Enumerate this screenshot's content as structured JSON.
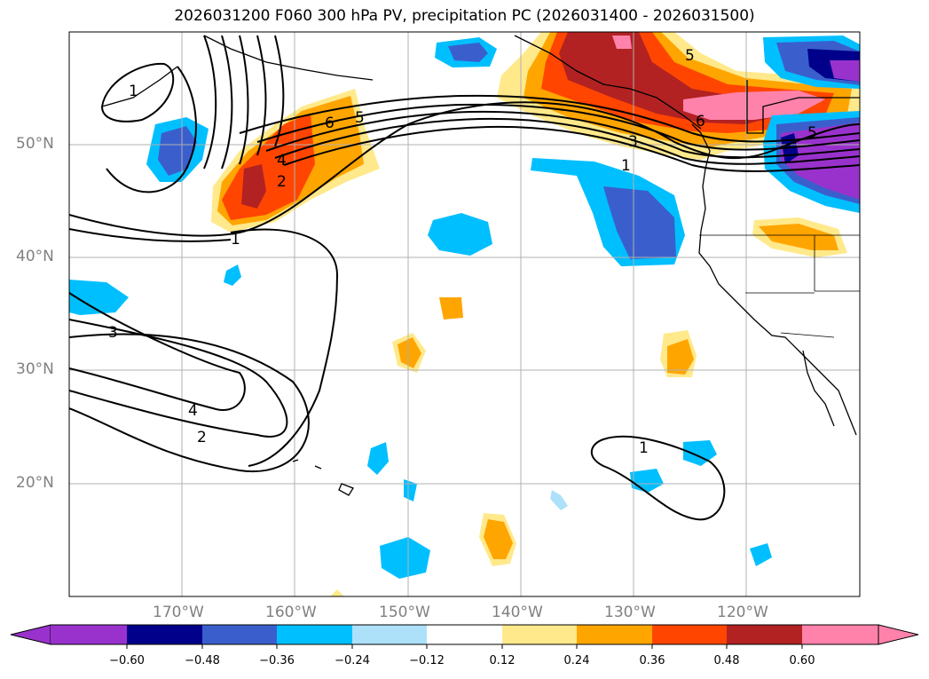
{
  "title": "2026031200 F060 300 hPa PV, precipitation PC (2026031400 - 2026031500)",
  "map": {
    "extent": {
      "lon_min": -180,
      "lon_max": -110,
      "lat_min": 10,
      "lat_max": 60
    },
    "lat_ticks": [
      {
        "value": 20,
        "label": "20°N"
      },
      {
        "value": 30,
        "label": "30°N"
      },
      {
        "value": 40,
        "label": "40°N"
      },
      {
        "value": 50,
        "label": "50°N"
      }
    ],
    "lon_ticks": [
      {
        "value": -170,
        "label": "170°W"
      },
      {
        "value": -160,
        "label": "160°W"
      },
      {
        "value": -150,
        "label": "150°W"
      },
      {
        "value": -140,
        "label": "140°W"
      },
      {
        "value": -130,
        "label": "130°W"
      },
      {
        "value": -120,
        "label": "120°W"
      }
    ],
    "pv_contour_labels": [
      "1",
      "2",
      "3",
      "4",
      "5",
      "6"
    ],
    "grid": true
  },
  "colorbar": {
    "ticks": [
      "−0.60",
      "−0.48",
      "−0.36",
      "−0.24",
      "−0.12",
      "0.12",
      "0.24",
      "0.36",
      "0.48",
      "0.60"
    ],
    "colors": [
      "#9932CC",
      "#00008B",
      "#3A5FCD",
      "#00BFFF",
      "#ADE1FA",
      "#FFFFFF",
      "#FFE98B",
      "#FFA500",
      "#FF4500",
      "#B22222",
      "#FF82AB"
    ]
  }
}
